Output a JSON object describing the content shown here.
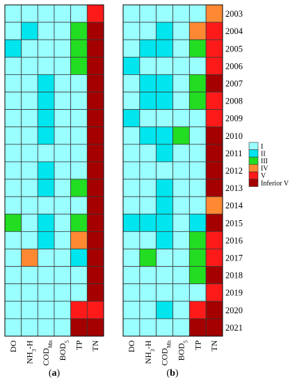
{
  "colors": {
    "I": "#99FFFF",
    "II": "#00E5EE",
    "III": "#22DD22",
    "IV": "#FF8833",
    "V": "#FF1A1A",
    "Inferior V": "#A40000"
  },
  "chart_data": [
    {
      "type": "heatmap",
      "panel_label": "(a)",
      "columns": [
        {
          "main": "DO",
          "sub": ""
        },
        {
          "main": "NH",
          "sub": "3",
          "tail": "-H"
        },
        {
          "main": "COD",
          "sub": "Mn"
        },
        {
          "main": "BOD",
          "sub": "5"
        },
        {
          "main": "TP",
          "sub": ""
        },
        {
          "main": "TN",
          "sub": ""
        }
      ],
      "rows": [
        "2003",
        "2004",
        "2005",
        "2006",
        "2007",
        "2008",
        "2009",
        "2010",
        "2011",
        "2012",
        "2013",
        "2014",
        "2015",
        "2016",
        "2017",
        "2018",
        "2019",
        "2020",
        "2021"
      ],
      "grades": [
        [
          "I",
          "I",
          "I",
          "I",
          "I",
          "V"
        ],
        [
          "I",
          "II",
          "I",
          "I",
          "III",
          "Inferior V"
        ],
        [
          "II",
          "I",
          "I",
          "I",
          "III",
          "Inferior V"
        ],
        [
          "I",
          "I",
          "I",
          "I",
          "III",
          "Inferior V"
        ],
        [
          "I",
          "I",
          "II",
          "I",
          "I",
          "Inferior V"
        ],
        [
          "I",
          "I",
          "II",
          "I",
          "I",
          "Inferior V"
        ],
        [
          "I",
          "I",
          "II",
          "I",
          "I",
          "Inferior V"
        ],
        [
          "I",
          "I",
          "II",
          "I",
          "I",
          "Inferior V"
        ],
        [
          "I",
          "I",
          "I",
          "I",
          "I",
          "Inferior V"
        ],
        [
          "I",
          "I",
          "II",
          "I",
          "I",
          "Inferior V"
        ],
        [
          "I",
          "I",
          "II",
          "I",
          "III",
          "Inferior V"
        ],
        [
          "I",
          "I",
          "I",
          "I",
          "I",
          "Inferior V"
        ],
        [
          "III",
          "I",
          "II",
          "I",
          "III",
          "Inferior V"
        ],
        [
          "I",
          "I",
          "II",
          "I",
          "IV",
          "Inferior V"
        ],
        [
          "I",
          "IV",
          "I",
          "I",
          "II",
          "Inferior V"
        ],
        [
          "I",
          "I",
          "I",
          "I",
          "I",
          "Inferior V"
        ],
        [
          "I",
          "I",
          "I",
          "I",
          "I",
          "Inferior V"
        ],
        [
          "I",
          "I",
          "I",
          "I",
          "V",
          "V"
        ],
        [
          "I",
          "I",
          "I",
          "I",
          "Inferior V",
          "Inferior V"
        ]
      ]
    },
    {
      "type": "heatmap",
      "panel_label": "(b)",
      "columns": [
        {
          "main": "DO",
          "sub": ""
        },
        {
          "main": "NH",
          "sub": "3",
          "tail": "-H"
        },
        {
          "main": "COD",
          "sub": "Mn"
        },
        {
          "main": "BOD",
          "sub": "5"
        },
        {
          "main": "TP",
          "sub": ""
        },
        {
          "main": "TN",
          "sub": ""
        }
      ],
      "rows": [
        "2003",
        "2004",
        "2005",
        "2006",
        "2007",
        "2008",
        "2009",
        "2010",
        "2011",
        "2012",
        "2013",
        "2014",
        "2015",
        "2016",
        "2017",
        "2018",
        "2019",
        "2020",
        "2021"
      ],
      "grades": [
        [
          "I",
          "I",
          "I",
          "I",
          "I",
          "IV"
        ],
        [
          "I",
          "I",
          "II",
          "I",
          "IV",
          "V"
        ],
        [
          "I",
          "II",
          "II",
          "I",
          "III",
          "V"
        ],
        [
          "II",
          "I",
          "I",
          "I",
          "I",
          "V"
        ],
        [
          "I",
          "II",
          "II",
          "I",
          "III",
          "Inferior V"
        ],
        [
          "I",
          "II",
          "II",
          "I",
          "III",
          "V"
        ],
        [
          "II",
          "I",
          "I",
          "I",
          "I",
          "V"
        ],
        [
          "I",
          "II",
          "II",
          "III",
          "I",
          "Inferior V"
        ],
        [
          "I",
          "I",
          "II",
          "I",
          "I",
          "Inferior V"
        ],
        [
          "I",
          "I",
          "I",
          "I",
          "I",
          "Inferior V"
        ],
        [
          "I",
          "I",
          "II",
          "I",
          "I",
          "Inferior V"
        ],
        [
          "I",
          "I",
          "II",
          "I",
          "I",
          "IV"
        ],
        [
          "II",
          "II",
          "II",
          "I",
          "II",
          "Inferior V"
        ],
        [
          "I",
          "I",
          "II",
          "I",
          "III",
          "V"
        ],
        [
          "I",
          "III",
          "I",
          "I",
          "III",
          "V"
        ],
        [
          "I",
          "I",
          "I",
          "I",
          "III",
          "Inferior V"
        ],
        [
          "I",
          "I",
          "I",
          "I",
          "I",
          "V"
        ],
        [
          "I",
          "I",
          "II",
          "I",
          "V",
          "Inferior V"
        ],
        [
          "I",
          "I",
          "I",
          "I",
          "Inferior V",
          "Inferior V"
        ]
      ]
    }
  ],
  "legend": [
    "I",
    "II",
    "III",
    "IV",
    "V",
    "Inferior V"
  ]
}
